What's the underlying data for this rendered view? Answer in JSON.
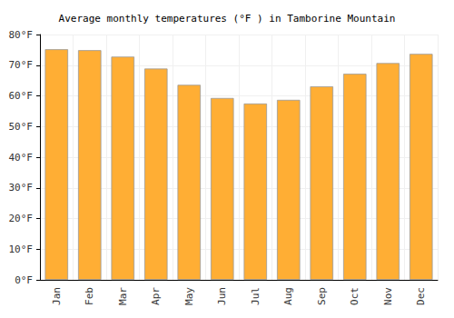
{
  "chart_data": {
    "type": "bar",
    "title": "Average monthly temperatures (°F ) in Tamborine Mountain",
    "categories": [
      "Jan",
      "Feb",
      "Mar",
      "Apr",
      "May",
      "Jun",
      "Jul",
      "Aug",
      "Sep",
      "Oct",
      "Nov",
      "Dec"
    ],
    "values": [
      75.2,
      74.9,
      72.8,
      68.9,
      63.6,
      59.3,
      57.5,
      58.7,
      63.1,
      67.2,
      70.7,
      73.7
    ],
    "color": "#ffae34",
    "ylim": [
      0,
      80
    ],
    "yticks": [
      {
        "value": 0,
        "label": "0°F"
      },
      {
        "value": 10,
        "label": "10°F"
      },
      {
        "value": 20,
        "label": "20°F"
      },
      {
        "value": 30,
        "label": "30°F"
      },
      {
        "value": 40,
        "label": "40°F"
      },
      {
        "value": 50,
        "label": "50°F"
      },
      {
        "value": 60,
        "label": "60°F"
      },
      {
        "value": 70,
        "label": "70°F"
      },
      {
        "value": 80,
        "label": "80°F"
      }
    ],
    "grid": true
  }
}
